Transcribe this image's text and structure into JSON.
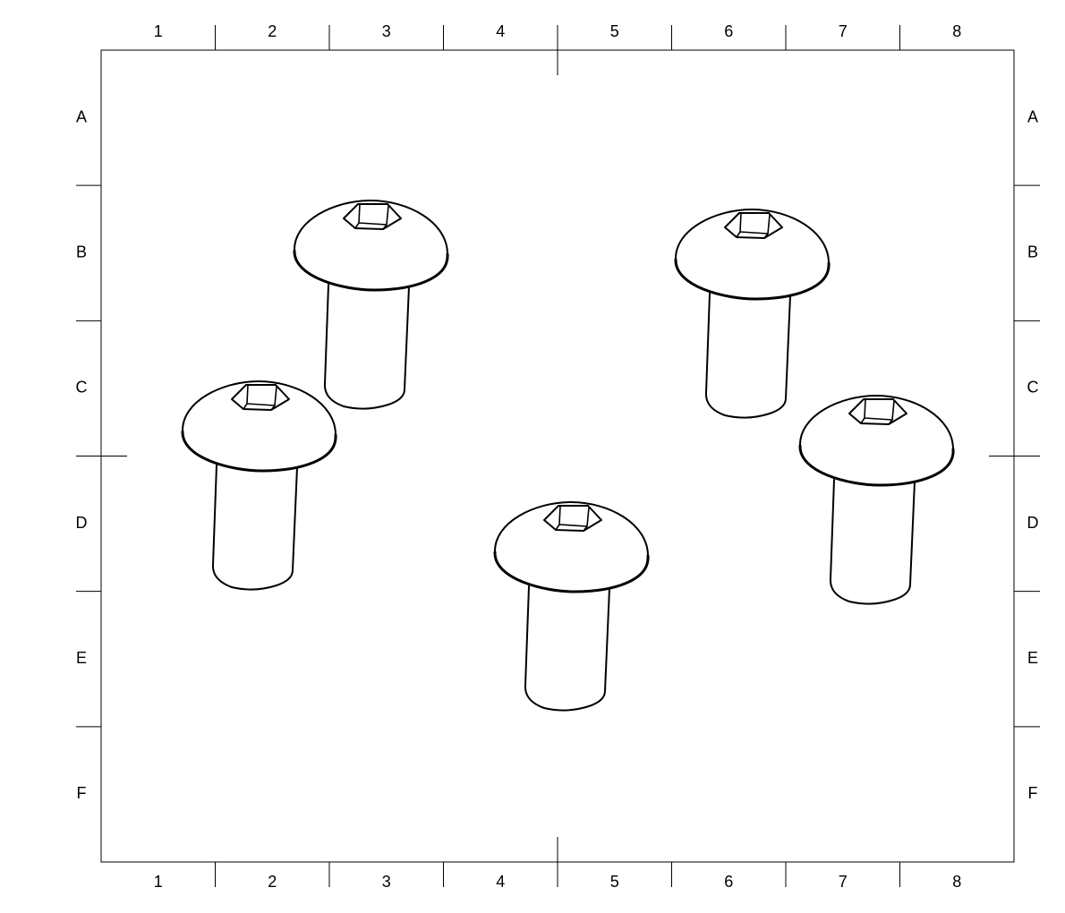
{
  "sheet": {
    "columns": [
      "1",
      "2",
      "3",
      "4",
      "5",
      "6",
      "7",
      "8"
    ],
    "rows": [
      "A",
      "B",
      "C",
      "D",
      "E",
      "F"
    ]
  },
  "parts": [
    {
      "name": "button-head-hex-socket-screw",
      "location": "B3"
    },
    {
      "name": "button-head-hex-socket-screw",
      "location": "B6"
    },
    {
      "name": "button-head-hex-socket-screw",
      "location": "C2"
    },
    {
      "name": "button-head-hex-socket-screw",
      "location": "D4"
    },
    {
      "name": "button-head-hex-socket-screw",
      "location": "C7"
    }
  ],
  "colors": {
    "line": "#000000",
    "background": "#ffffff"
  }
}
